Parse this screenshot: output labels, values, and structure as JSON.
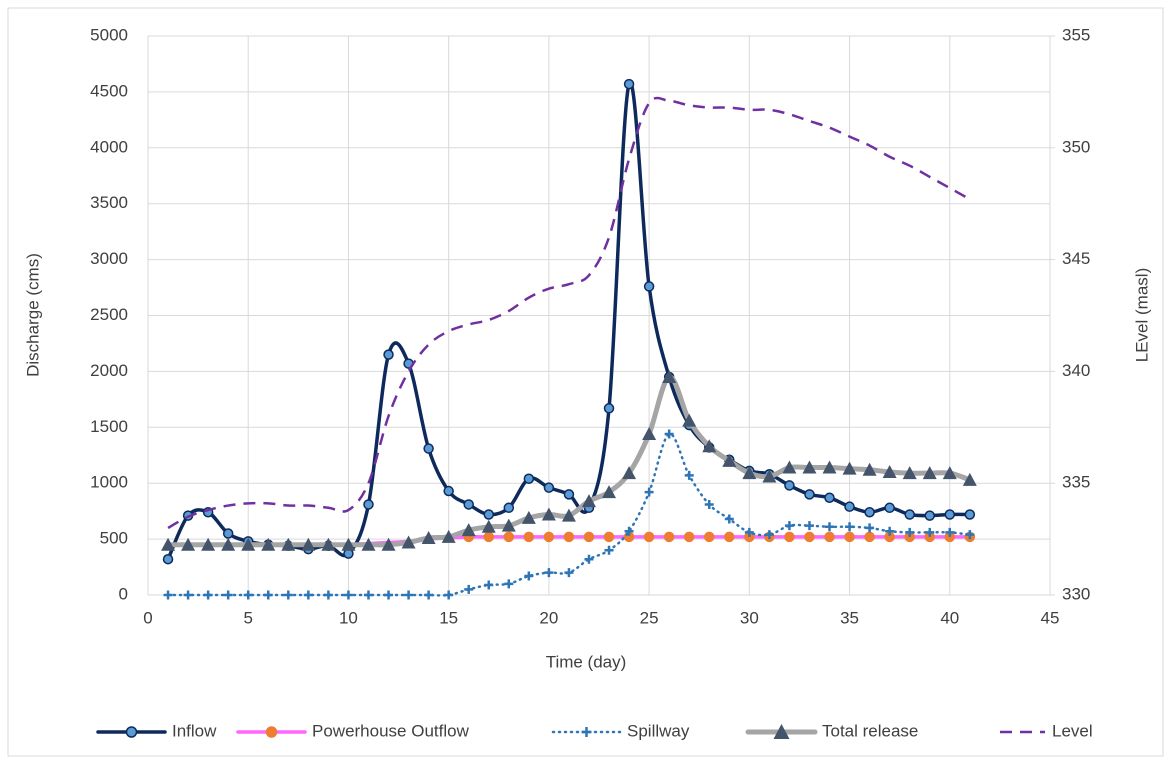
{
  "chart_data": {
    "type": "line",
    "x_label": "Time (day)",
    "y_label": "Discharge (cms)",
    "y2_label": "LEvel (masl)",
    "x": [
      1,
      2,
      3,
      4,
      5,
      6,
      7,
      8,
      9,
      10,
      11,
      12,
      13,
      14,
      15,
      16,
      17,
      18,
      19,
      20,
      21,
      22,
      23,
      24,
      25,
      26,
      27,
      28,
      29,
      30,
      31,
      32,
      33,
      34,
      35,
      36,
      37,
      38,
      39,
      40,
      41
    ],
    "xlim": [
      0,
      45
    ],
    "xticks": [
      0,
      5,
      10,
      15,
      20,
      25,
      30,
      35,
      40,
      45
    ],
    "ylim": [
      0,
      5000
    ],
    "yticks": [
      0,
      500,
      1000,
      1500,
      2000,
      2500,
      3000,
      3500,
      4000,
      4500,
      5000
    ],
    "y2lim": [
      330,
      355
    ],
    "y2ticks": [
      330,
      335,
      340,
      345,
      350,
      355
    ],
    "grid": true,
    "legend": "bottom",
    "series": [
      {
        "name": "Inflow",
        "color": "#0e2a5c",
        "marker": "circle",
        "marker_color": "#5b9bd5",
        "line_style": "solid",
        "values": [
          320,
          710,
          740,
          550,
          480,
          450,
          440,
          410,
          440,
          370,
          810,
          2150,
          2070,
          1310,
          930,
          810,
          720,
          780,
          1040,
          960,
          900,
          780,
          1670,
          4570,
          2760,
          1950,
          1520,
          1320,
          1210,
          1110,
          1080,
          980,
          900,
          870,
          790,
          740,
          780,
          720,
          710,
          720,
          720
        ]
      },
      {
        "name": "Powerhouse Outflow",
        "color": "#ff66ff",
        "marker": "circle",
        "marker_color": "#ed7d31",
        "line_style": "solid",
        "values": [
          450,
          450,
          450,
          450,
          450,
          450,
          450,
          450,
          450,
          450,
          460,
          470,
          480,
          500,
          510,
          520,
          520,
          520,
          520,
          520,
          520,
          520,
          520,
          520,
          520,
          520,
          520,
          520,
          520,
          520,
          520,
          520,
          520,
          520,
          520,
          520,
          520,
          520,
          520,
          520,
          520
        ]
      },
      {
        "name": "Spillway",
        "color": "#2e75b6",
        "marker": "plus",
        "marker_color": "#2e75b6",
        "line_style": "dotted",
        "values": [
          0,
          0,
          0,
          0,
          0,
          0,
          0,
          0,
          0,
          0,
          0,
          0,
          0,
          0,
          0,
          50,
          90,
          100,
          170,
          200,
          200,
          320,
          400,
          570,
          920,
          1440,
          1070,
          810,
          680,
          560,
          540,
          620,
          620,
          610,
          610,
          600,
          570,
          560,
          560,
          560,
          540
        ]
      },
      {
        "name": "Total release",
        "color": "#a5a5a5",
        "marker": "triangle",
        "marker_color": "#44546a",
        "line_style": "thick",
        "values": [
          450,
          450,
          450,
          450,
          450,
          450,
          450,
          450,
          450,
          450,
          450,
          450,
          470,
          510,
          520,
          580,
          610,
          620,
          690,
          720,
          710,
          840,
          920,
          1090,
          1440,
          1950,
          1560,
          1330,
          1200,
          1090,
          1060,
          1140,
          1140,
          1140,
          1130,
          1120,
          1100,
          1090,
          1090,
          1090,
          1030
        ]
      },
      {
        "name": "Level",
        "color": "#7030a0",
        "marker": "none",
        "line_style": "dashed",
        "axis": "y2",
        "values": [
          333.0,
          333.5,
          333.8,
          334.0,
          334.1,
          334.1,
          334.0,
          334.0,
          333.9,
          333.8,
          335.0,
          338.0,
          340.0,
          341.2,
          341.8,
          342.1,
          342.3,
          342.7,
          343.3,
          343.7,
          343.9,
          344.3,
          346.0,
          349.5,
          352.0,
          352.1,
          351.9,
          351.8,
          351.8,
          351.7,
          351.7,
          351.5,
          351.2,
          350.9,
          350.5,
          350.1,
          349.6,
          349.2,
          348.7,
          348.2,
          347.7
        ]
      }
    ]
  }
}
